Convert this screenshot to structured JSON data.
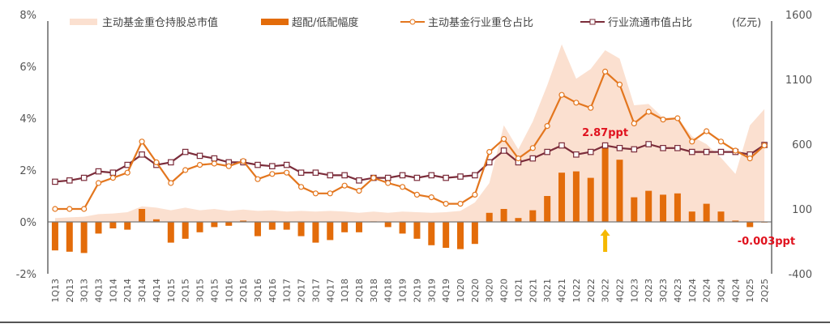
{
  "chart_data": {
    "type": "bar+line+area",
    "categories": [
      "1Q13",
      "2Q13",
      "3Q13",
      "4Q13",
      "1Q14",
      "2Q14",
      "3Q14",
      "4Q14",
      "1Q15",
      "2Q15",
      "3Q15",
      "4Q15",
      "1Q16",
      "2Q16",
      "3Q16",
      "4Q16",
      "1Q17",
      "2Q17",
      "3Q17",
      "4Q17",
      "1Q18",
      "2Q18",
      "3Q18",
      "4Q18",
      "1Q19",
      "2Q19",
      "3Q19",
      "4Q19",
      "1Q20",
      "2Q20",
      "3Q20",
      "4Q20",
      "1Q21",
      "2Q21",
      "3Q21",
      "4Q21",
      "1Q22",
      "2Q22",
      "3Q22",
      "4Q22",
      "1Q23",
      "2Q23",
      "3Q23",
      "4Q23",
      "1Q24",
      "2Q24",
      "3Q24",
      "4Q24",
      "1Q25",
      "2Q25"
    ],
    "left_axis": {
      "ylim": [
        -2,
        8
      ],
      "ticks": [
        "-2%",
        "0%",
        "2%",
        "4%",
        "6%",
        "8%"
      ],
      "tick_values": [
        -2,
        0,
        2,
        4,
        6,
        8
      ]
    },
    "right_axis": {
      "ylim": [
        -400,
        1600
      ],
      "ticks": [
        "-400",
        "100",
        "600",
        "1100",
        "1600"
      ],
      "tick_values": [
        -400,
        100,
        600,
        1100,
        1600
      ],
      "unit": "(亿元)"
    },
    "series": [
      {
        "name": "主动基金重仓持股总市值",
        "type": "area",
        "axis": "right",
        "color": "#fbe0d0",
        "values": [
          30,
          35,
          40,
          60,
          65,
          75,
          120,
          110,
          90,
          110,
          90,
          100,
          85,
          95,
          85,
          90,
          80,
          85,
          80,
          85,
          80,
          70,
          80,
          70,
          80,
          75,
          70,
          75,
          85,
          150,
          300,
          745,
          560,
          775,
          1055,
          1370,
          1105,
          1180,
          1325,
          1260,
          900,
          910,
          805,
          805,
          660,
          600,
          495,
          370,
          745,
          870
        ]
      },
      {
        "name": "超配/低配幅度",
        "type": "bar",
        "axis": "left",
        "color": "#e36c0a",
        "values": [
          -1.1,
          -1.15,
          -1.2,
          -0.45,
          -0.25,
          -0.3,
          0.5,
          0.1,
          -0.8,
          -0.65,
          -0.4,
          -0.2,
          -0.15,
          0.05,
          -0.55,
          -0.3,
          -0.3,
          -0.55,
          -0.8,
          -0.7,
          -0.4,
          -0.4,
          0.02,
          -0.2,
          -0.45,
          -0.65,
          -0.9,
          -1.0,
          -1.05,
          -0.85,
          0.35,
          0.5,
          0.15,
          0.45,
          1.0,
          1.9,
          1.95,
          1.7,
          2.87,
          2.4,
          0.95,
          1.2,
          1.05,
          1.1,
          0.4,
          0.7,
          0.4,
          0.05,
          -0.2,
          -0.003
        ]
      },
      {
        "name": "主动基金行业重仓占比",
        "type": "line",
        "axis": "left",
        "color": "#e3761e",
        "marker": "circle",
        "values": [
          0.5,
          0.5,
          0.5,
          1.5,
          1.7,
          1.9,
          3.1,
          2.3,
          1.5,
          2.0,
          2.2,
          2.25,
          2.15,
          2.35,
          1.65,
          1.85,
          1.9,
          1.35,
          1.1,
          1.1,
          1.4,
          1.2,
          1.7,
          1.5,
          1.35,
          1.05,
          0.95,
          0.7,
          0.7,
          1.05,
          2.7,
          3.2,
          2.45,
          2.85,
          3.7,
          4.9,
          4.6,
          4.4,
          5.8,
          5.3,
          3.8,
          4.25,
          3.95,
          4.0,
          3.1,
          3.5,
          3.1,
          2.75,
          2.45,
          2.95
        ]
      },
      {
        "name": "行业流通市值占比",
        "type": "line",
        "axis": "left",
        "color": "#7b2c3a",
        "marker": "square",
        "values": [
          1.55,
          1.6,
          1.7,
          1.95,
          1.9,
          2.2,
          2.6,
          2.2,
          2.3,
          2.7,
          2.55,
          2.45,
          2.3,
          2.3,
          2.2,
          2.15,
          2.2,
          1.9,
          1.9,
          1.8,
          1.8,
          1.6,
          1.7,
          1.7,
          1.8,
          1.7,
          1.8,
          1.7,
          1.75,
          1.8,
          2.3,
          2.75,
          2.3,
          2.45,
          2.7,
          2.95,
          2.6,
          2.7,
          2.95,
          2.85,
          2.8,
          3.0,
          2.85,
          2.85,
          2.7,
          2.7,
          2.7,
          2.7,
          2.6,
          2.97
        ]
      }
    ],
    "annotations": [
      {
        "text": "2.87ppt",
        "category": "3Q22",
        "color": "#e0121e"
      },
      {
        "text": "-0.003ppt",
        "category": "2Q25",
        "color": "#e0121e"
      }
    ],
    "highlight_arrow": {
      "category": "3Q22",
      "color": "#f5b800"
    },
    "legend_position": "top",
    "grid": false
  }
}
